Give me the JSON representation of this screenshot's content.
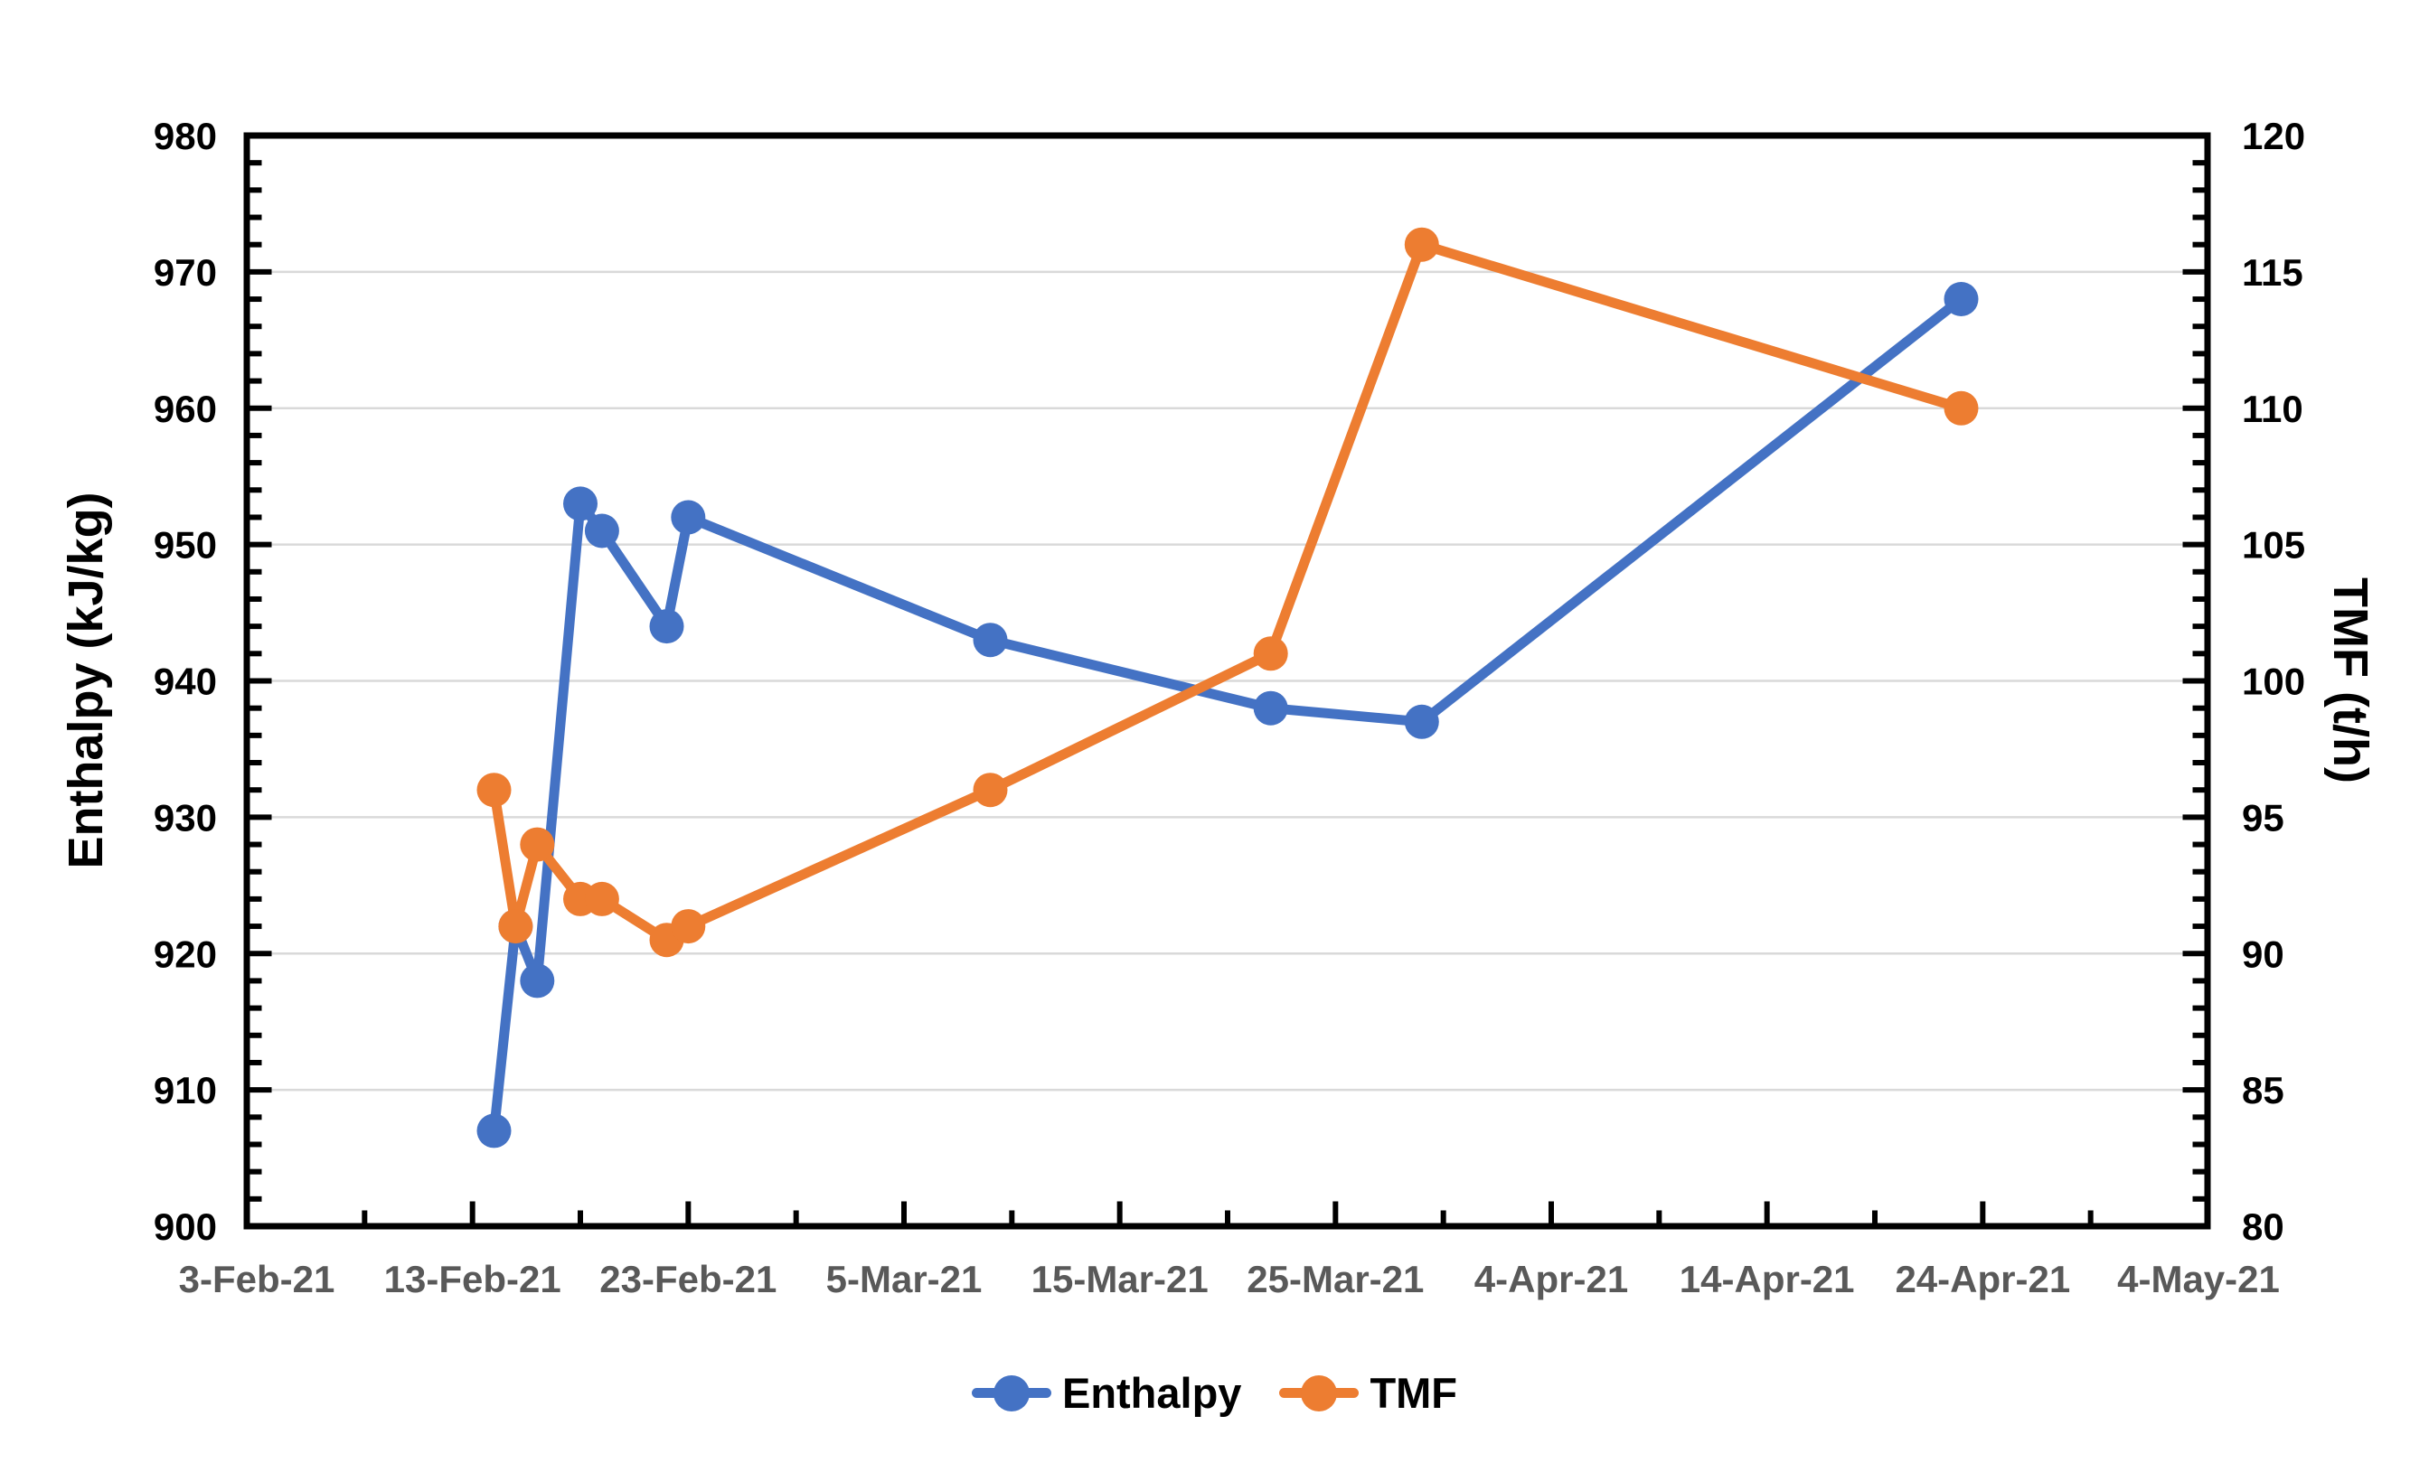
{
  "chart_data": {
    "type": "line",
    "title": "",
    "background": "#FFFFFF",
    "grid": "horizontal-major",
    "grid_color": "#D9D9D9",
    "frame_color": "#000000",
    "x_axis": {
      "start": "3-Feb-21",
      "end": "4-May-21",
      "major_tick_days": 10,
      "minor_tick_days": 5,
      "tick_labels": [
        "3-Feb-21",
        "13-Feb-21",
        "23-Feb-21",
        "5-Mar-21",
        "15-Mar-21",
        "25-Mar-21",
        "4-Apr-21",
        "14-Apr-21",
        "24-Apr-21",
        "4-May-21"
      ],
      "label_color": "#595959"
    },
    "y_left": {
      "label": "Enthalpy (kJ/kg)",
      "min": 900,
      "max": 980,
      "major": 10,
      "minor": 2,
      "tick_labels": [
        "900",
        "910",
        "920",
        "930",
        "940",
        "950",
        "960",
        "970",
        "980"
      ],
      "label_color": "#000000"
    },
    "y_right": {
      "label": "TMF (t/h)",
      "min": 80,
      "max": 120,
      "major": 5,
      "minor": 1,
      "tick_labels": [
        "80",
        "85",
        "90",
        "95",
        "100",
        "105",
        "110",
        "115",
        "120"
      ],
      "label_color": "#000000"
    },
    "dates": [
      "14-Feb-21",
      "15-Feb-21",
      "16-Feb-21",
      "18-Feb-21",
      "19-Feb-21",
      "22-Feb-21",
      "23-Feb-21",
      "9-Mar-21",
      "22-Mar-21",
      "29-Mar-21",
      "23-Apr-21"
    ],
    "series": [
      {
        "name": "Enthalpy",
        "axis": "left",
        "color": "#4472C4",
        "values": [
          907,
          922,
          918,
          953,
          951,
          944,
          952,
          943,
          938,
          937,
          968
        ]
      },
      {
        "name": "TMF",
        "axis": "right",
        "color": "#ED7D31",
        "values": [
          96,
          91,
          94,
          92,
          92,
          90.5,
          91,
          96,
          101,
          116,
          110
        ]
      }
    ],
    "legend": {
      "position": "bottom-center",
      "entries": [
        "Enthalpy",
        "TMF"
      ]
    }
  }
}
